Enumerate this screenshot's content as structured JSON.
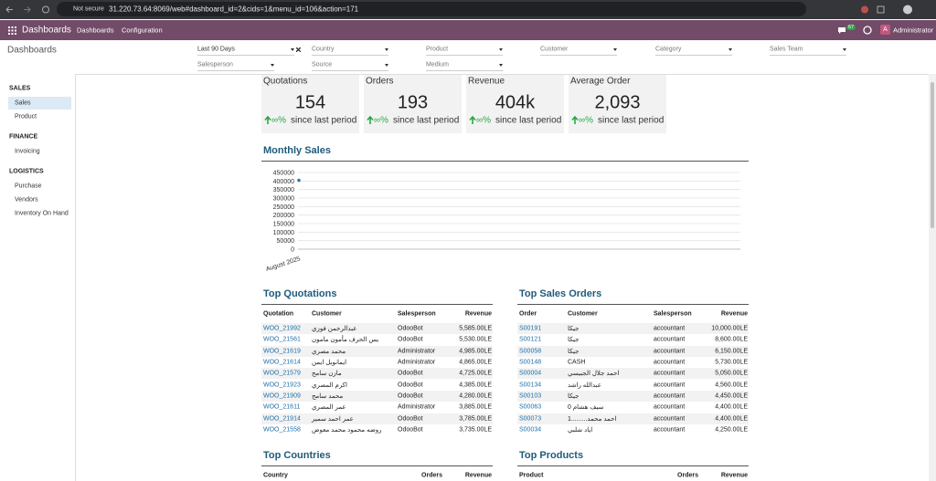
{
  "browser": {
    "security": "Not secure",
    "url": "31.220.73.64:8069/web#dashboard_id=2&cids=1&menu_id=106&action=171"
  },
  "navbar": {
    "app": "Dashboards",
    "menus": [
      "Dashboards",
      "Configuration"
    ],
    "chat_count": 67,
    "avatar": "A",
    "user": "Administrator"
  },
  "control_panel": {
    "breadcrumb": "Dashboards",
    "filters": [
      "Last 90 Days",
      "Country",
      "Product",
      "Customer",
      "Category",
      "Sales Team",
      "Salesperson",
      "Source",
      "Medium"
    ]
  },
  "sidebar": {
    "sections": [
      {
        "title": "SALES",
        "items": [
          "Sales",
          "Product"
        ]
      },
      {
        "title": "FINANCE",
        "items": [
          "Invoicing"
        ]
      },
      {
        "title": "LOGISTICS",
        "items": [
          "Purchase",
          "Vendors",
          "Inventory On Hand"
        ]
      }
    ]
  },
  "kpis": [
    {
      "title": "Quotations",
      "value": "154",
      "trend": "∞%",
      "caption": "since last period"
    },
    {
      "title": "Orders",
      "value": "193",
      "trend": "∞%",
      "caption": "since last period"
    },
    {
      "title": "Revenue",
      "value": "404k",
      "trend": "∞%",
      "caption": "since last period"
    },
    {
      "title": "Average Order",
      "value": "2,093",
      "trend": "∞%",
      "caption": "since last period"
    }
  ],
  "chart_data": {
    "type": "line",
    "title": "Monthly Sales",
    "x": [
      "August 2025"
    ],
    "values": [
      404000
    ],
    "color": "#2b7bb0",
    "ylim": [
      0,
      450000
    ],
    "yticks": [
      0,
      50000,
      100000,
      150000,
      200000,
      250000,
      300000,
      350000,
      400000,
      450000
    ],
    "grid": true
  },
  "tables": [
    {
      "title": "Top Quotations",
      "columns": [
        "Quotation",
        "Customer",
        "Salesperson",
        "Revenue"
      ],
      "rows": [
        [
          "WOO_21992",
          "عبدالرحمن فوزي",
          "OdooBot",
          "5,585.00LE"
        ],
        [
          "WOO_21561",
          "يس الحرف مأمون مامون",
          "OdooBot",
          "5,530.00LE"
        ],
        [
          "WOO_21619",
          "محمد مصري",
          "Administrator",
          "4,985.00LE"
        ],
        [
          "WOO_21614",
          "ايمانويل ايمن",
          "Administrator",
          "4,865.00LE"
        ],
        [
          "WOO_21579",
          "مازن سامح",
          "OdooBot",
          "4,725.00LE"
        ],
        [
          "WOO_21923",
          "اكرم المصري",
          "OdooBot",
          "4,385.00LE"
        ],
        [
          "WOO_21909",
          "محمد سامح",
          "OdooBot",
          "4,280.00LE"
        ],
        [
          "WOO_21611",
          "عمر المصري",
          "Administrator",
          "3,885.00LE"
        ],
        [
          "WOO_21914",
          "عمر احمد سمير",
          "OdooBot",
          "3,785.00LE"
        ],
        [
          "WOO_21558",
          "روضه محمود محمد معوض",
          "OdooBot",
          "3,735.00LE"
        ]
      ]
    },
    {
      "title": "Top Sales Orders",
      "columns": [
        "Order",
        "Customer",
        "Salesperson",
        "Revenue"
      ],
      "rows": [
        [
          "S00191",
          "جيكا",
          "accountant",
          "10,000.00LE"
        ],
        [
          "S00121",
          "جيكا",
          "accountant",
          "8,600.00LE"
        ],
        [
          "S00058",
          "جيكا",
          "accountant",
          "6,150.00LE"
        ],
        [
          "S00148",
          "CASH",
          "accountant",
          "5,730.00LE"
        ],
        [
          "S00004",
          "احمد جلال الجبيسي",
          "accountant",
          "5,050.00LE"
        ],
        [
          "S00134",
          "عبدالله راشد",
          "accountant",
          "4,560.00LE"
        ],
        [
          "S00103",
          "جيكا",
          "accountant",
          "4,450.00LE"
        ],
        [
          "S00063",
          "سيف هشام 0",
          "accountant",
          "4,400.00LE"
        ],
        [
          "S00073",
          "احمد محمد.........1",
          "accountant",
          "4,400.00LE"
        ],
        [
          "S00034",
          "اياد شلبي",
          "accountant",
          "4,250.00LE"
        ]
      ]
    },
    {
      "title": "Top Countries",
      "columns": [
        "Country",
        "Orders",
        "Revenue"
      ]
    },
    {
      "title": "Top Products",
      "columns": [
        "Product",
        "Orders",
        "Revenue"
      ]
    }
  ]
}
